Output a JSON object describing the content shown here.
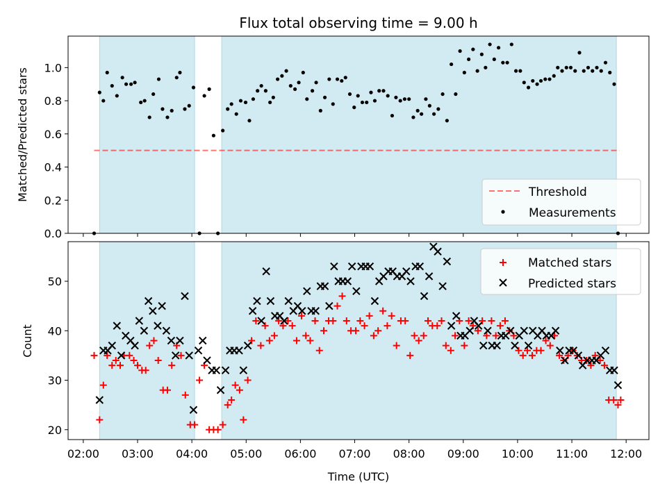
{
  "title": "Flux total observing time = 9.00 h",
  "colors": {
    "shade": "#add8e6",
    "threshold": "#ff0000",
    "measurements": "#000000",
    "matched": "#ff0000",
    "predicted": "#000000"
  },
  "chart_data": [
    {
      "type": "scatter",
      "ylabel": "Matched/Predicted stars",
      "xlim": [
        1.72,
        12.42
      ],
      "ylim": [
        0,
        1.19
      ],
      "yticks": [
        0.0,
        0.2,
        0.4,
        0.6,
        0.8,
        1.0
      ],
      "ytick_labels": [
        "0.0",
        "0.2",
        "0.4",
        "0.6",
        "0.8",
        "1.0"
      ],
      "shaded_intervals": [
        [
          2.3,
          4.05
        ],
        [
          4.55,
          11.82
        ]
      ],
      "legend": {
        "position": "lower right",
        "entries": [
          "Threshold",
          "Measurements"
        ]
      },
      "threshold": {
        "name": "Threshold",
        "value": 0.5,
        "x": [
          2.2,
          11.88
        ],
        "style": "dashed"
      },
      "series": [
        {
          "name": "Measurements",
          "marker": "dot",
          "x": [
            2.2,
            2.3,
            2.37,
            2.44,
            2.53,
            2.62,
            2.72,
            2.79,
            2.88,
            2.95,
            3.06,
            3.13,
            3.22,
            3.29,
            3.39,
            3.46,
            3.55,
            3.63,
            3.72,
            3.78,
            3.87,
            3.95,
            4.03,
            4.14,
            4.23,
            4.32,
            4.4,
            4.48,
            4.57,
            4.66,
            4.73,
            4.82,
            4.9,
            4.99,
            5.06,
            5.13,
            5.21,
            5.28,
            5.36,
            5.44,
            5.5,
            5.58,
            5.66,
            5.74,
            5.82,
            5.9,
            5.97,
            6.05,
            6.12,
            6.22,
            6.29,
            6.37,
            6.45,
            6.53,
            6.6,
            6.68,
            6.76,
            6.83,
            6.91,
            6.99,
            7.06,
            7.14,
            7.22,
            7.3,
            7.37,
            7.45,
            7.53,
            7.61,
            7.69,
            7.76,
            7.84,
            7.92,
            8.0,
            8.08,
            8.16,
            8.23,
            8.31,
            8.38,
            8.46,
            8.54,
            8.62,
            8.7,
            8.78,
            8.86,
            8.94,
            9.02,
            9.1,
            9.18,
            9.26,
            9.34,
            9.41,
            9.49,
            9.57,
            9.65,
            9.73,
            9.81,
            9.89,
            9.97,
            10.05,
            10.12,
            10.2,
            10.28,
            10.36,
            10.43,
            10.51,
            10.59,
            10.67,
            10.74,
            10.82,
            10.9,
            10.98,
            11.06,
            11.14,
            11.22,
            11.3,
            11.38,
            11.46,
            11.54,
            11.62,
            11.7,
            11.78,
            11.85
          ],
          "y": [
            0.0,
            0.85,
            0.8,
            0.97,
            0.89,
            0.83,
            0.94,
            0.9,
            0.9,
            0.91,
            0.79,
            0.8,
            0.7,
            0.84,
            0.93,
            0.75,
            0.7,
            0.74,
            0.94,
            0.97,
            0.75,
            0.77,
            0.88,
            0.0,
            0.83,
            0.87,
            0.59,
            0.0,
            0.62,
            0.75,
            0.78,
            0.72,
            0.8,
            0.79,
            0.68,
            0.81,
            0.86,
            0.89,
            0.86,
            0.79,
            0.82,
            0.93,
            0.95,
            0.98,
            0.89,
            0.87,
            0.91,
            0.97,
            0.81,
            0.86,
            0.91,
            0.74,
            0.82,
            0.93,
            0.78,
            0.93,
            0.92,
            0.94,
            0.84,
            0.76,
            0.83,
            0.79,
            0.79,
            0.85,
            0.8,
            0.86,
            0.86,
            0.83,
            0.71,
            0.82,
            0.8,
            0.81,
            0.81,
            0.7,
            0.74,
            0.72,
            0.81,
            0.77,
            0.72,
            0.75,
            0.84,
            0.68,
            1.02,
            0.84,
            1.1,
            0.97,
            1.05,
            1.11,
            0.98,
            1.08,
            1.0,
            1.14,
            1.05,
            1.12,
            1.03,
            1.03,
            1.14,
            0.98,
            0.98,
            0.91,
            0.88,
            0.92,
            0.9,
            0.92,
            0.93,
            0.93,
            0.95,
            1.0,
            0.98,
            1.0,
            1.0,
            0.98,
            1.09,
            0.98,
            1.0,
            0.98,
            1.0,
            0.98,
            1.03,
            0.97,
            0.9,
            0.0
          ]
        }
      ]
    },
    {
      "type": "scatter",
      "xlabel": "Time (UTC)",
      "ylabel": "Count",
      "xlim": [
        1.72,
        12.42
      ],
      "ylim": [
        18,
        58
      ],
      "xticks": [
        2,
        3,
        4,
        5,
        6,
        7,
        8,
        9,
        10,
        11,
        12
      ],
      "xtick_labels": [
        "02:00",
        "03:00",
        "04:00",
        "05:00",
        "06:00",
        "07:00",
        "08:00",
        "09:00",
        "10:00",
        "11:00",
        "12:00"
      ],
      "yticks": [
        20,
        30,
        40,
        50
      ],
      "ytick_labels": [
        "20",
        "30",
        "40",
        "50"
      ],
      "shaded_intervals": [
        [
          2.3,
          4.05
        ],
        [
          4.55,
          11.82
        ]
      ],
      "legend": {
        "position": "upper right",
        "entries": [
          "Matched stars",
          "Predicted stars"
        ]
      },
      "series": [
        {
          "name": "Matched stars",
          "marker": "plus",
          "x": [
            2.2,
            2.3,
            2.37,
            2.44,
            2.53,
            2.6,
            2.68,
            2.75,
            2.85,
            2.93,
            3.0,
            3.08,
            3.15,
            3.22,
            3.3,
            3.38,
            3.47,
            3.55,
            3.63,
            3.72,
            3.8,
            3.88,
            3.97,
            4.05,
            4.14,
            4.23,
            4.32,
            4.4,
            4.48,
            4.57,
            4.66,
            4.73,
            4.8,
            4.88,
            4.95,
            5.03,
            5.1,
            5.18,
            5.27,
            5.35,
            5.43,
            5.52,
            5.6,
            5.68,
            5.77,
            5.85,
            5.93,
            6.02,
            6.1,
            6.18,
            6.27,
            6.35,
            6.43,
            6.52,
            6.6,
            6.68,
            6.77,
            6.85,
            6.93,
            7.02,
            7.1,
            7.18,
            7.27,
            7.35,
            7.43,
            7.52,
            7.6,
            7.68,
            7.77,
            7.85,
            7.93,
            8.02,
            8.1,
            8.18,
            8.27,
            8.35,
            8.43,
            8.52,
            8.6,
            8.68,
            8.77,
            8.85,
            8.93,
            9.02,
            9.1,
            9.18,
            9.27,
            9.35,
            9.43,
            9.52,
            9.6,
            9.68,
            9.77,
            9.85,
            9.93,
            10.02,
            10.1,
            10.18,
            10.27,
            10.35,
            10.43,
            10.52,
            10.6,
            10.68,
            10.77,
            10.85,
            10.93,
            11.02,
            11.1,
            11.18,
            11.27,
            11.35,
            11.43,
            11.52,
            11.6,
            11.68,
            11.77,
            11.85,
            11.9
          ],
          "y": [
            35,
            22,
            29,
            35,
            33,
            34,
            33,
            35,
            35,
            34,
            33,
            32,
            32,
            37,
            38,
            34,
            28,
            28,
            33,
            37,
            35,
            27,
            21,
            21,
            30,
            33,
            20,
            20,
            20,
            21,
            25,
            26,
            29,
            28,
            22,
            30,
            38,
            42,
            37,
            41,
            38,
            39,
            42,
            41,
            42,
            41,
            38,
            43,
            39,
            38,
            42,
            36,
            40,
            42,
            42,
            45,
            47,
            42,
            40,
            40,
            42,
            41,
            43,
            39,
            40,
            44,
            41,
            43,
            37,
            42,
            42,
            35,
            39,
            38,
            39,
            42,
            41,
            41,
            42,
            37,
            36,
            39,
            42,
            37,
            42,
            41,
            40,
            42,
            39,
            42,
            39,
            41,
            42,
            40,
            39,
            36,
            35,
            36,
            35,
            36,
            36,
            38,
            37,
            39,
            35,
            34,
            35,
            36,
            35,
            34,
            34,
            33,
            35,
            34,
            33,
            26,
            26,
            25,
            26
          ],
          "_note": ""
        },
        {
          "name": "Predicted stars",
          "marker": "x",
          "x": [
            2.3,
            2.37,
            2.45,
            2.53,
            2.62,
            2.7,
            2.78,
            2.87,
            2.95,
            3.03,
            3.12,
            3.2,
            3.28,
            3.37,
            3.45,
            3.53,
            3.62,
            3.7,
            3.78,
            3.87,
            3.95,
            4.03,
            4.12,
            4.2,
            4.28,
            4.37,
            4.45,
            4.53,
            4.62,
            4.7,
            4.78,
            4.87,
            4.95,
            5.03,
            5.12,
            5.2,
            5.28,
            5.37,
            5.45,
            5.53,
            5.62,
            5.7,
            5.78,
            5.87,
            5.95,
            6.03,
            6.12,
            6.2,
            6.28,
            6.37,
            6.45,
            6.53,
            6.62,
            6.7,
            6.78,
            6.87,
            6.95,
            7.03,
            7.12,
            7.2,
            7.28,
            7.37,
            7.45,
            7.53,
            7.62,
            7.7,
            7.78,
            7.87,
            7.95,
            8.03,
            8.12,
            8.2,
            8.28,
            8.37,
            8.45,
            8.53,
            8.62,
            8.7,
            8.78,
            8.87,
            8.95,
            9.03,
            9.12,
            9.2,
            9.28,
            9.37,
            9.45,
            9.53,
            9.62,
            9.7,
            9.78,
            9.87,
            9.95,
            10.03,
            10.12,
            10.2,
            10.28,
            10.37,
            10.45,
            10.53,
            10.62,
            10.7,
            10.78,
            10.87,
            10.95,
            11.03,
            11.12,
            11.2,
            11.28,
            11.37,
            11.45,
            11.53,
            11.62,
            11.7,
            11.78,
            11.85
          ],
          "y": [
            26,
            36,
            36,
            37,
            41,
            35,
            39,
            38,
            37,
            42,
            40,
            46,
            44,
            41,
            45,
            40,
            38,
            35,
            38,
            47,
            35,
            24,
            36,
            38,
            34,
            32,
            32,
            28,
            32,
            36,
            36,
            36,
            32,
            37,
            44,
            46,
            42,
            52,
            46,
            43,
            43,
            42,
            46,
            44,
            45,
            44,
            48,
            44,
            44,
            49,
            49,
            45,
            53,
            50,
            50,
            50,
            53,
            48,
            53,
            53,
            53,
            46,
            50,
            51,
            52,
            52,
            51,
            51,
            52,
            50,
            53,
            53,
            47,
            51,
            57,
            56,
            49,
            54,
            41,
            43,
            39,
            39,
            40,
            42,
            41,
            37,
            40,
            37,
            37,
            39,
            39,
            40,
            37,
            39,
            40,
            37,
            40,
            39,
            40,
            39,
            39,
            40,
            36,
            34,
            36,
            36,
            35,
            33,
            34,
            34,
            34,
            35,
            36,
            32,
            32,
            29
          ]
        }
      ]
    }
  ]
}
